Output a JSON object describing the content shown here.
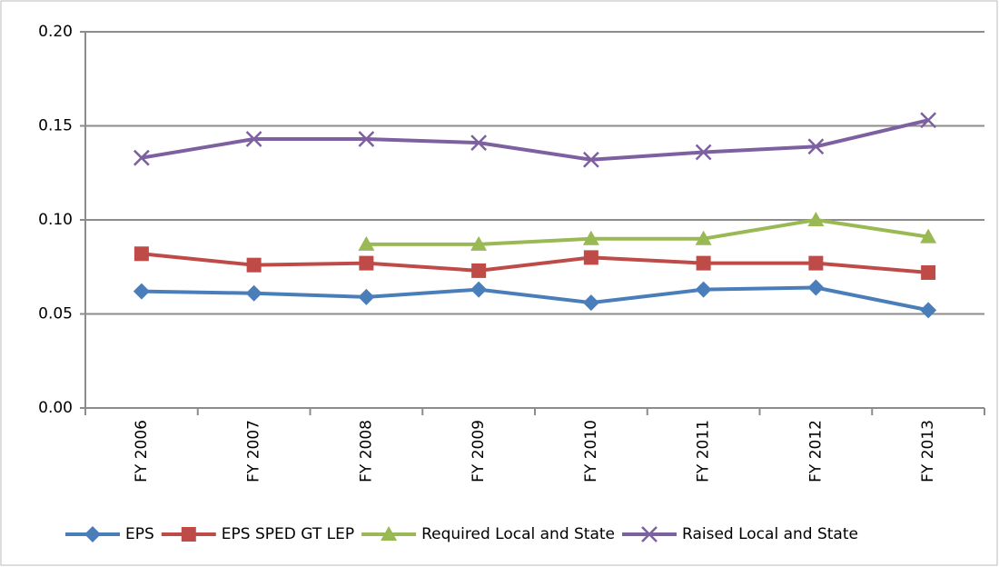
{
  "chart_data": {
    "type": "line",
    "categories": [
      "FY 2006",
      "FY 2007",
      "FY 2008",
      "FY 2009",
      "FY 2010",
      "FY 2011",
      "FY 2012",
      "FY 2013"
    ],
    "series": [
      {
        "name": "EPS",
        "color": "#4a7ebb",
        "marker": "diamond",
        "values": [
          0.062,
          0.061,
          0.059,
          0.063,
          0.056,
          0.063,
          0.064,
          0.052
        ]
      },
      {
        "name": "EPS SPED GT LEP",
        "color": "#be4b48",
        "marker": "square",
        "values": [
          0.082,
          0.076,
          0.077,
          0.073,
          0.08,
          0.077,
          0.077,
          0.072
        ]
      },
      {
        "name": "Required Local and State",
        "color": "#98b954",
        "marker": "triangle",
        "values": [
          null,
          null,
          0.087,
          0.087,
          0.09,
          0.09,
          0.1,
          0.091
        ]
      },
      {
        "name": "Raised Local and State",
        "color": "#7d60a0",
        "marker": "x",
        "values": [
          0.133,
          0.143,
          0.143,
          0.141,
          0.132,
          0.136,
          0.139,
          0.153
        ]
      }
    ],
    "ylim": [
      0,
      0.2
    ],
    "yticks": [
      {
        "value": 0,
        "label": "0.00"
      },
      0.05,
      {
        "value": 0.1,
        "label": "0.10"
      },
      0.15,
      {
        "value": 0.2,
        "label": "0.20"
      }
    ],
    "grid": true,
    "legend": "bottom"
  }
}
